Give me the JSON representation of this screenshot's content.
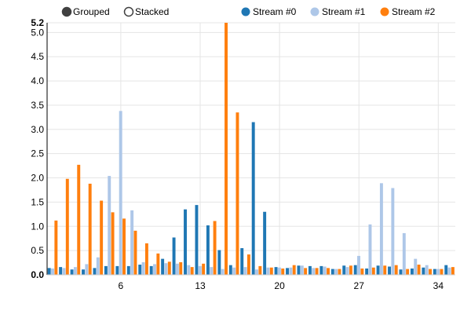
{
  "controls": {
    "grouped_label": "Grouped",
    "stacked_label": "Stacked",
    "selected": "Grouped"
  },
  "chart_data": {
    "type": "bar",
    "mode": "grouped",
    "title": "",
    "xlabel": "",
    "ylabel": "",
    "ylim": [
      0,
      5.2
    ],
    "y_ticks": [
      0.0,
      0.5,
      1.0,
      1.5,
      2.0,
      2.5,
      3.0,
      3.5,
      4.0,
      4.5,
      5.0,
      5.2
    ],
    "y_tick_labels": [
      "0.0",
      "0.5",
      "1.0",
      "1.5",
      "2.0",
      "2.5",
      "3.0",
      "3.5",
      "4.0",
      "4.5",
      "5.0",
      "5.2"
    ],
    "x": [
      0,
      1,
      2,
      3,
      4,
      5,
      6,
      7,
      8,
      9,
      10,
      11,
      12,
      13,
      14,
      15,
      16,
      17,
      18,
      19,
      20,
      21,
      22,
      23,
      24,
      25,
      26,
      27,
      28,
      29,
      30,
      31,
      32,
      33,
      34,
      35
    ],
    "x_ticks": [
      6,
      13,
      20,
      27,
      34
    ],
    "x_tick_labels": [
      "6",
      "13",
      "20",
      "27",
      "34"
    ],
    "grid": true,
    "legend_position": "top",
    "series": [
      {
        "name": "Stream #0",
        "color": "#1f77b4",
        "values": [
          0.14,
          0.16,
          0.11,
          0.11,
          0.14,
          0.18,
          0.18,
          0.18,
          0.21,
          0.18,
          0.33,
          0.77,
          1.35,
          1.44,
          1.02,
          0.51,
          0.2,
          0.55,
          3.15,
          1.3,
          0.16,
          0.14,
          0.19,
          0.18,
          0.18,
          0.12,
          0.19,
          0.2,
          0.13,
          0.19,
          0.17,
          0.11,
          0.13,
          0.15,
          0.12,
          0.2
        ]
      },
      {
        "name": "Stream #1",
        "color": "#aec7e8",
        "values": [
          0.13,
          0.14,
          0.16,
          0.22,
          0.36,
          2.04,
          3.38,
          1.33,
          0.26,
          0.22,
          0.24,
          0.23,
          0.2,
          0.18,
          0.16,
          0.12,
          0.15,
          0.16,
          0.11,
          0.15,
          0.15,
          0.15,
          0.19,
          0.14,
          0.17,
          0.12,
          0.16,
          0.39,
          1.04,
          1.89,
          1.79,
          0.86,
          0.33,
          0.2,
          0.12,
          0.15
        ]
      },
      {
        "name": "Stream #2",
        "color": "#ff7f0e",
        "values": [
          1.12,
          1.98,
          2.27,
          1.88,
          1.53,
          1.29,
          1.16,
          0.91,
          0.65,
          0.44,
          0.27,
          0.26,
          0.16,
          0.23,
          1.11,
          5.2,
          3.35,
          0.42,
          0.18,
          0.15,
          0.13,
          0.2,
          0.14,
          0.14,
          0.14,
          0.12,
          0.19,
          0.13,
          0.15,
          0.19,
          0.2,
          0.12,
          0.21,
          0.12,
          0.12,
          0.16
        ]
      }
    ]
  }
}
